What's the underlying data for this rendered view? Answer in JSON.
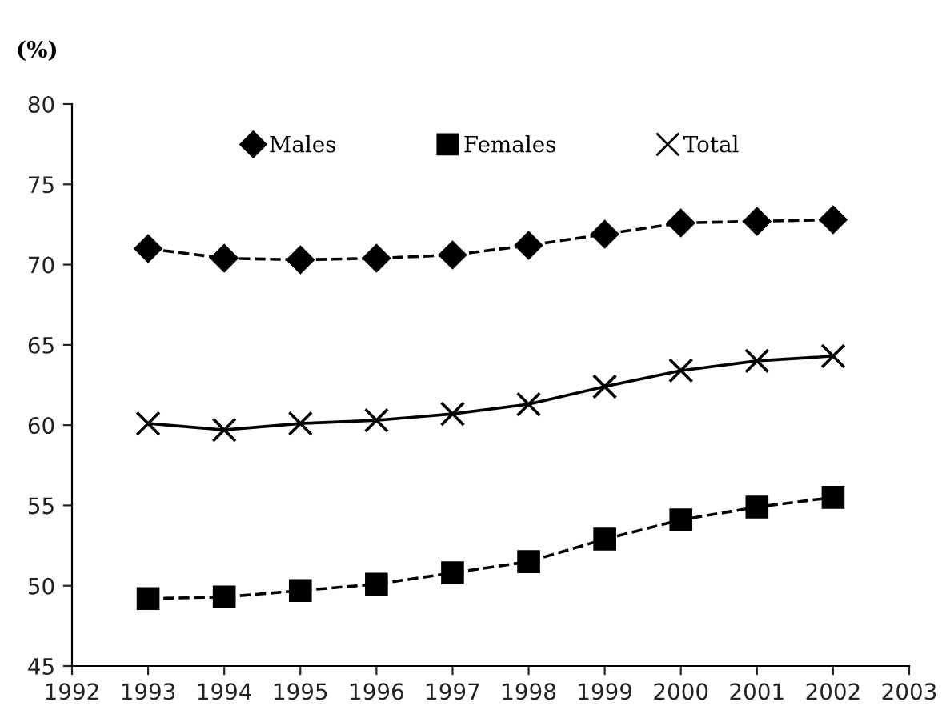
{
  "chart_data": {
    "type": "line",
    "ylabel": "(%)",
    "x": [
      1993,
      1994,
      1995,
      1996,
      1997,
      1998,
      1999,
      2000,
      2001,
      2002
    ],
    "series": [
      {
        "name": "Males",
        "color": "#000000",
        "marker": "diamond",
        "line_style": "dashed",
        "values": [
          71.0,
          70.4,
          70.3,
          70.4,
          70.6,
          71.2,
          71.9,
          72.6,
          72.7,
          72.8
        ]
      },
      {
        "name": "Females",
        "color": "#000000",
        "marker": "square",
        "line_style": "dashed",
        "values": [
          49.2,
          49.3,
          49.7,
          50.1,
          50.8,
          51.5,
          52.9,
          54.1,
          54.9,
          55.5
        ]
      },
      {
        "name": "Total",
        "color": "#000000",
        "marker": "cross",
        "line_style": "solid",
        "values": [
          60.1,
          59.7,
          60.1,
          60.3,
          60.7,
          61.3,
          62.4,
          63.4,
          64.0,
          64.3
        ]
      }
    ],
    "xlim": [
      1992,
      2003
    ],
    "xticks": [
      1992,
      1993,
      1994,
      1995,
      1996,
      1997,
      1998,
      1999,
      2000,
      2001,
      2002,
      2003
    ],
    "ylim": [
      45,
      80
    ],
    "yticks": [
      45,
      50,
      55,
      60,
      65,
      70,
      75,
      80
    ],
    "grid": false,
    "legend": "top"
  }
}
